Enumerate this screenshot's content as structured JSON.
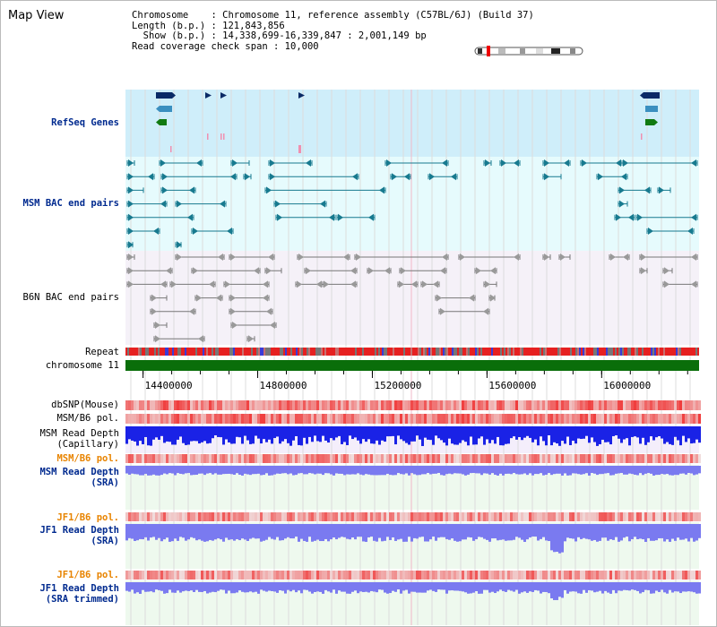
{
  "title": "Map View",
  "info": {
    "chromosome": "Chromosome    : Chromosome 11, reference assembly (C57BL/6J) (Build 37)",
    "length": "Length (b.p.) : 121,843,856",
    "show": "  Show (b.p.) : 14,338,699-16,339,847 : 2,001,149 bp",
    "coverage": "Read coverage check span : 10,000"
  },
  "tracks": {
    "refseq": "RefSeq Genes",
    "msm_bac": "MSM BAC end pairs",
    "b6n_bac": "B6N BAC end pairs",
    "repeat": "Repeat",
    "chromosome": "chromosome 11",
    "dbsnp": "dbSNP(Mouse)",
    "msm_pol1": "MSM/B6 pol.",
    "msm_depth_cap": "MSM Read Depth\n(Capillary)",
    "msm_pol2": "MSM/B6 pol.",
    "msm_depth_sra": "MSM Read Depth\n(SRA)",
    "jf1_pol1": "JF1/B6 pol.",
    "jf1_depth_sra": "JF1 Read Depth\n(SRA)",
    "jf1_pol2": "JF1/B6 pol.",
    "jf1_depth_trim": "JF1 Read Depth\n(SRA trimmed)"
  },
  "axis": {
    "ticks": [
      {
        "label": "14400000",
        "value": 14400000
      },
      {
        "label": "14800000",
        "value": 14800000
      },
      {
        "label": "15200000",
        "value": 15200000
      },
      {
        "label": "15600000",
        "value": 15600000
      },
      {
        "label": "16000000",
        "value": 16000000
      }
    ],
    "start": 14338699,
    "end": 16339847
  },
  "colors": {
    "refseq_bg": "#cfeefa",
    "msm_bg": "#e6fbfd",
    "b6n_bg": "#f5f1f8",
    "gene_dark": "#0a2a66",
    "gene_mid": "#3a8fc0",
    "gene_green": "#117a11",
    "bac_teal": "#177a8f",
    "bac_gray": "#777777",
    "chrom_green": "#0a6e0a",
    "depth_blue": "#1a22e6",
    "sra_blue": "#7a7af0",
    "pol_red": "#e63333",
    "label_navy": "#002a8f",
    "label_orange": "#e88400"
  }
}
